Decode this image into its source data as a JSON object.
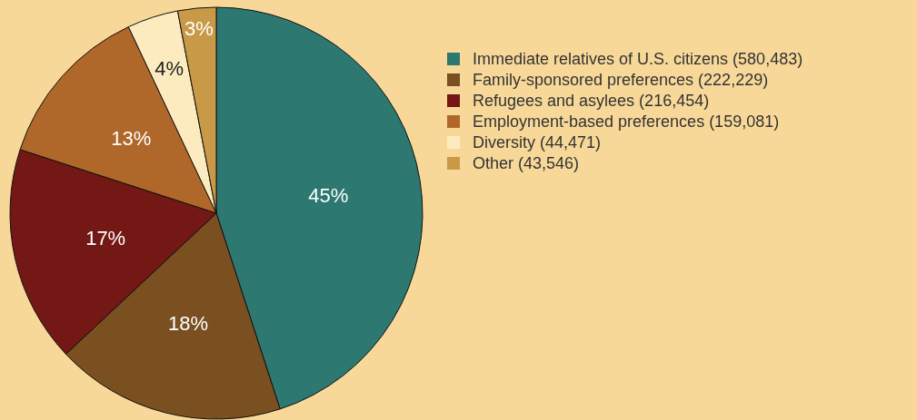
{
  "chart_data": {
    "type": "pie",
    "categories": [
      "Immediate relatives of U.S. citizens (580,483)",
      "Family-sponsored preferences (222,229)",
      "Refugees and asylees (216,454)",
      "Employment-based preferences (159,081)",
      "Diversity (44,471)",
      "Other (43,546)"
    ],
    "values": [
      45,
      18,
      17,
      13,
      4,
      3
    ],
    "value_labels": [
      "45%",
      "18%",
      "17%",
      "13%",
      "4%",
      "3%"
    ],
    "colors": [
      "#2e7872",
      "#7a5020",
      "#731815",
      "#b0682a",
      "#fdebc0",
      "#c89a48"
    ],
    "legend": "right"
  }
}
